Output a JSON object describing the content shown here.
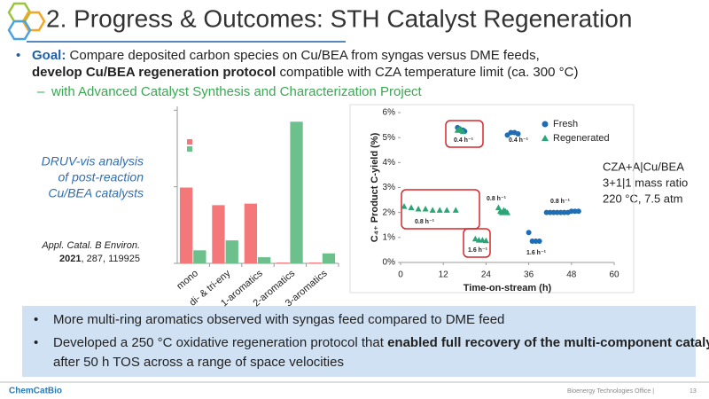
{
  "header": {
    "title": "2. Progress & Outcomes: STH Catalyst Regeneration"
  },
  "goal": {
    "label": "Goal:",
    "segments": [
      "Compare deposited carbon species on Cu/BEA from syngas versus DME feeds,",
      "develop Cu/BEA regeneration protocol",
      "compatible with CZA temperature limit (ca. 300 °C)"
    ],
    "sub": "with Advanced Catalyst Synthesis and Characterization Project"
  },
  "druv_note": [
    "DRUV-vis analysis",
    "of post-reaction",
    "Cu/BEA catalysts"
  ],
  "citation": {
    "journal": "Appl. Catal. B Environ.",
    "year": "2021",
    "rest": ", 287, 119925"
  },
  "conditions": [
    "CZA+A|Cu/BEA",
    "3+1|1 mass ratio",
    "220 °C, 7.5 atm"
  ],
  "summary": [
    [
      "More multi-ring aromatics observed with syngas feed compared to DME feed"
    ],
    [
      "Developed a 250 °C oxidative regeneration protocol that",
      "enabled full recovery of the multi-component catalyst",
      "after 50 h TOS across a range of space velocities"
    ]
  ],
  "footer": {
    "logo": "ChemCatBio",
    "office": "Bioenergy Technologies Office |",
    "page": "13"
  },
  "chart_data": [
    {
      "type": "bar",
      "categories": [
        "mono",
        "di- & tri-eny",
        "1-aromatics",
        "2-aromatics",
        "3-aromatics"
      ],
      "series": [
        {
          "color": "#f4777a",
          "values": [
            0.99,
            0.76,
            0.78,
            0.01,
            0.01
          ]
        },
        {
          "color": "#6cc08b",
          "values": [
            0.17,
            0.3,
            0.08,
            1.85,
            0.13
          ]
        }
      ],
      "ylim": [
        0,
        2.05
      ],
      "yticks": [
        0,
        1,
        2
      ]
    },
    {
      "type": "scatter",
      "xlabel": "Time-on-stream (h)",
      "ylabel": "C₄₊ Product C-yield (%)",
      "xlim": [
        0,
        60
      ],
      "xticks": [
        0,
        12,
        24,
        36,
        48,
        60
      ],
      "ylim": [
        0,
        6
      ],
      "yticks": [
        {
          "value": 0,
          "label": "0%"
        },
        {
          "value": 1,
          "label": "1%"
        },
        {
          "value": 2,
          "label": "2%"
        },
        {
          "value": 3,
          "label": "3%"
        },
        {
          "value": 4,
          "label": "4%"
        },
        {
          "value": 5,
          "label": "5%"
        },
        {
          "value": 6,
          "label": "6%"
        }
      ],
      "series": [
        {
          "name": "Fresh",
          "color": "#1f6db3",
          "marker": "circle",
          "x": [
            16,
            16.5,
            17,
            17.5,
            18,
            30,
            31,
            32,
            33,
            36,
            37,
            38,
            39,
            41,
            42,
            43,
            44,
            45,
            46,
            47,
            48,
            49,
            50
          ],
          "values": [
            5.4,
            5.35,
            5.3,
            5.3,
            5.25,
            5.1,
            5.2,
            5.2,
            5.15,
            1.2,
            0.85,
            0.85,
            0.85,
            2.0,
            2.0,
            2.0,
            2.0,
            2.0,
            2.0,
            2.0,
            2.05,
            2.05,
            2.05
          ]
        },
        {
          "name": "Regenerated",
          "color": "#2aa576",
          "marker": "triangle",
          "x": [
            1,
            3,
            5,
            7,
            9,
            11,
            13,
            15.5,
            16,
            16.5,
            17,
            17.5,
            21,
            22,
            23,
            24,
            27.5,
            28,
            28.5,
            29,
            29.5,
            30
          ],
          "values": [
            2.25,
            2.2,
            2.15,
            2.15,
            2.1,
            2.1,
            2.1,
            2.1,
            5.3,
            5.35,
            5.3,
            5.25,
            0.95,
            0.9,
            0.9,
            0.88,
            2.2,
            2.05,
            2.0,
            2.1,
            2.05,
            2.0
          ]
        }
      ],
      "annotations": [
        "0.4 h⁻¹",
        "0.4 h⁻¹",
        "0.8 h⁻¹",
        "0.8 h⁻¹",
        "0.8 h⁻¹",
        "1.6 h⁻¹",
        "1.6 h⁻¹"
      ]
    }
  ]
}
